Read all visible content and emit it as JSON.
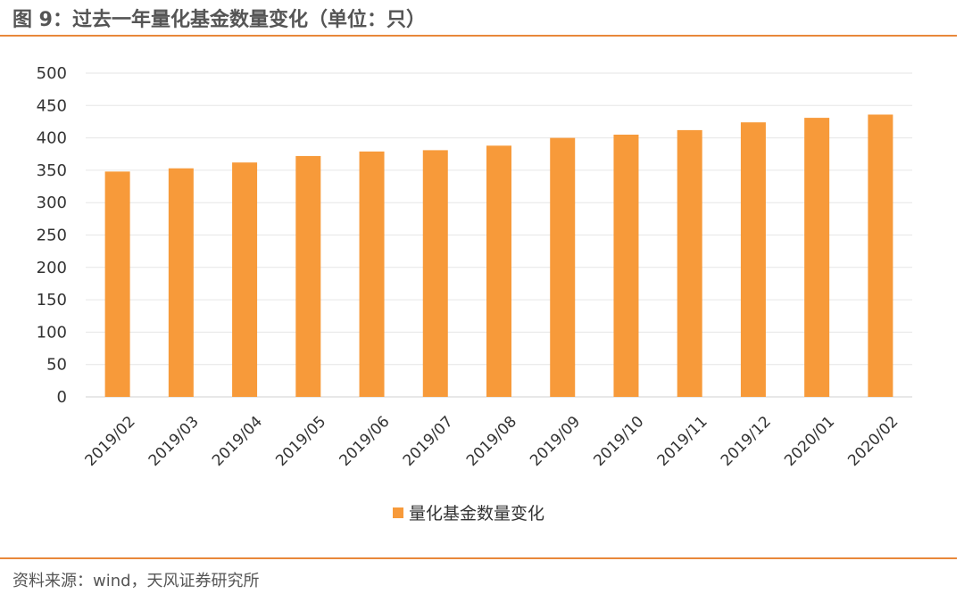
{
  "header": {
    "title": "图 9：过去一年量化基金数量变化（单位：只）"
  },
  "footer": {
    "source": "资料来源：wind，天风证券研究所"
  },
  "colors": {
    "bar": "#f79a3a",
    "rule": "#e8883a",
    "grid": "#e6e6e6"
  },
  "chart_data": {
    "type": "bar",
    "title": "",
    "xlabel": "",
    "ylabel": "",
    "categories": [
      "2019/02",
      "2019/03",
      "2019/04",
      "2019/05",
      "2019/06",
      "2019/07",
      "2019/08",
      "2019/09",
      "2019/10",
      "2019/11",
      "2019/12",
      "2020/01",
      "2020/02"
    ],
    "series": [
      {
        "name": "量化基金数量变化",
        "values": [
          348,
          353,
          362,
          372,
          379,
          381,
          388,
          400,
          405,
          412,
          424,
          431,
          436
        ]
      }
    ],
    "ylim": [
      0,
      500
    ],
    "yticks": [
      0,
      50,
      100,
      150,
      200,
      250,
      300,
      350,
      400,
      450,
      500
    ],
    "grid": true,
    "legend": "bottom-center"
  }
}
